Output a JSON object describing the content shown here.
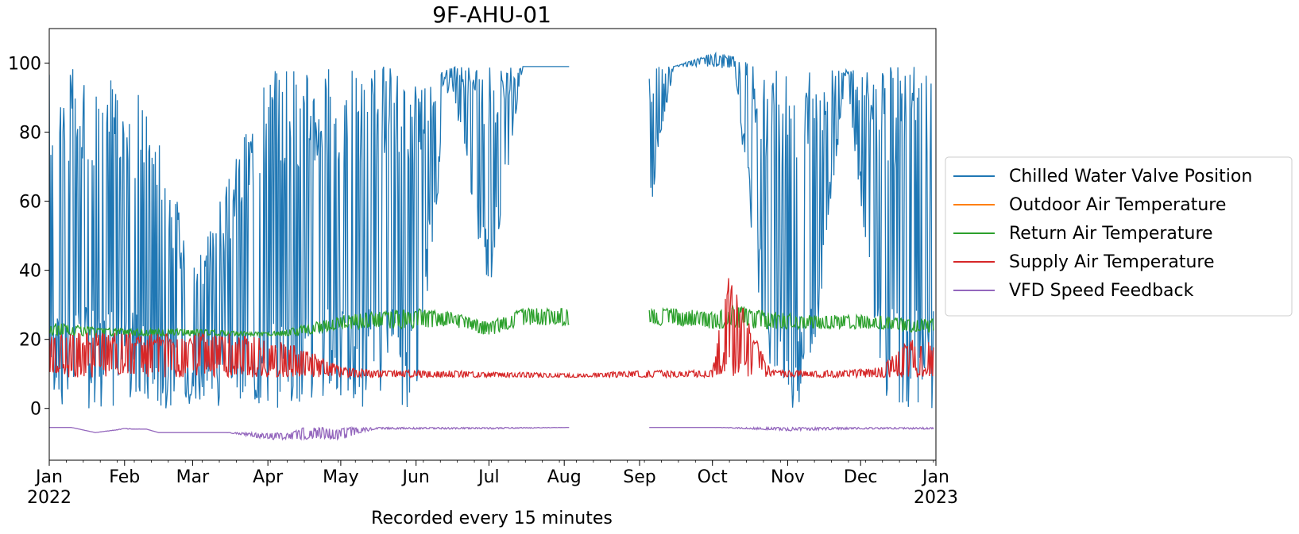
{
  "chart_data": {
    "type": "line",
    "title": "9F-AHU-01",
    "xlabel": "Recorded every 15 minutes",
    "ylabel": "",
    "xlim": [
      "2022-01-01",
      "2023-01-01"
    ],
    "ylim": [
      -15,
      110
    ],
    "yticks": [
      0,
      20,
      40,
      60,
      80,
      100
    ],
    "xticks": [
      {
        "date": "2022-01-01",
        "label": "Jan",
        "sublabel": "2022"
      },
      {
        "date": "2022-02-01",
        "label": "Feb",
        "sublabel": ""
      },
      {
        "date": "2022-03-01",
        "label": "Mar",
        "sublabel": ""
      },
      {
        "date": "2022-04-01",
        "label": "Apr",
        "sublabel": ""
      },
      {
        "date": "2022-05-01",
        "label": "May",
        "sublabel": ""
      },
      {
        "date": "2022-06-01",
        "label": "Jun",
        "sublabel": ""
      },
      {
        "date": "2022-07-01",
        "label": "Jul",
        "sublabel": ""
      },
      {
        "date": "2022-08-01",
        "label": "Aug",
        "sublabel": ""
      },
      {
        "date": "2022-09-01",
        "label": "Sep",
        "sublabel": ""
      },
      {
        "date": "2022-10-01",
        "label": "Oct",
        "sublabel": ""
      },
      {
        "date": "2022-11-01",
        "label": "Nov",
        "sublabel": ""
      },
      {
        "date": "2022-12-01",
        "label": "Dec",
        "sublabel": ""
      },
      {
        "date": "2023-01-01",
        "label": "Jan",
        "sublabel": "2023"
      }
    ],
    "grid": false,
    "legend_position": "outside-right",
    "series": [
      {
        "name": "Chilled Water Valve Position",
        "color": "#1f77b4",
        "x": [
          "2022-01-01",
          "2022-01-15",
          "2022-02-01",
          "2022-02-15",
          "2022-03-01",
          "2022-03-15",
          "2022-04-01",
          "2022-04-15",
          "2022-05-01",
          "2022-05-15",
          "2022-06-01",
          "2022-06-15",
          "2022-07-01",
          "2022-07-15",
          "2022-08-03",
          "2022-09-05",
          "2022-09-15",
          "2022-10-01",
          "2022-10-10",
          "2022-10-25",
          "2022-11-10",
          "2022-11-25",
          "2022-12-10",
          "2022-12-20",
          "2022-12-31"
        ],
        "values": [
          99,
          99,
          99,
          80,
          45,
          65,
          99,
          99,
          99,
          99,
          99,
          99,
          99,
          99,
          99,
          99,
          99,
          103,
          102,
          98,
          98,
          98,
          99,
          99,
          99
        ],
        "min": [
          0,
          0,
          0,
          0,
          0,
          0,
          0,
          0,
          0,
          0,
          0,
          97,
          30,
          99,
          99,
          55,
          99,
          99,
          98,
          0,
          0,
          98,
          0,
          0,
          0
        ]
      },
      {
        "name": "Outdoor Air Temperature",
        "color": "#ff7f0e",
        "x": [],
        "values": []
      },
      {
        "name": "Return Air Temperature",
        "color": "#2ca02c",
        "x": [
          "2022-01-01",
          "2022-01-15",
          "2022-02-01",
          "2022-02-15",
          "2022-03-01",
          "2022-03-15",
          "2022-04-01",
          "2022-04-15",
          "2022-05-01",
          "2022-05-15",
          "2022-06-01",
          "2022-06-15",
          "2022-07-01",
          "2022-07-15",
          "2022-08-03",
          "2022-09-05",
          "2022-09-15",
          "2022-10-01",
          "2022-10-10",
          "2022-10-25",
          "2022-11-10",
          "2022-11-25",
          "2022-12-10",
          "2022-12-20",
          "2022-12-31"
        ],
        "values": [
          25,
          24,
          23,
          23,
          23,
          22.5,
          22,
          24,
          27,
          28,
          29,
          28,
          25,
          29,
          29,
          29,
          29,
          28,
          30,
          28,
          27,
          27,
          27,
          26,
          26
        ],
        "min": [
          21,
          21,
          21,
          21,
          21,
          21,
          21,
          21,
          23,
          23,
          23,
          24,
          21,
          24,
          24,
          24,
          24,
          23,
          23,
          23,
          23,
          23,
          23,
          22,
          22
        ]
      },
      {
        "name": "Supply Air Temperature",
        "color": "#d62728",
        "x": [
          "2022-01-01",
          "2022-01-15",
          "2022-02-01",
          "2022-02-15",
          "2022-03-01",
          "2022-03-15",
          "2022-04-01",
          "2022-04-15",
          "2022-05-01",
          "2022-05-15",
          "2022-06-01",
          "2022-06-15",
          "2022-07-01",
          "2022-07-15",
          "2022-08-03",
          "2022-09-05",
          "2022-09-15",
          "2022-10-01",
          "2022-10-07",
          "2022-10-25",
          "2022-11-10",
          "2022-11-25",
          "2022-12-10",
          "2022-12-20",
          "2022-12-31"
        ],
        "values": [
          22,
          22,
          22,
          22,
          22,
          22,
          20,
          18,
          12,
          11,
          11,
          11,
          10.5,
          10.5,
          10,
          11,
          11,
          11,
          40,
          11,
          11,
          11,
          12,
          20,
          20
        ],
        "min": [
          9,
          9,
          9,
          9,
          9,
          9,
          9,
          9,
          9,
          9,
          9,
          9,
          9,
          9,
          9,
          9,
          9,
          9,
          9,
          9,
          9,
          9,
          9,
          9,
          9
        ]
      },
      {
        "name": "VFD Speed Feedback",
        "color": "#9467bd",
        "x": [
          "2022-01-01",
          "2022-01-10",
          "2022-01-20",
          "2022-02-01",
          "2022-02-10",
          "2022-02-15",
          "2022-03-01",
          "2022-03-15",
          "2022-04-01",
          "2022-04-10",
          "2022-04-15",
          "2022-05-01",
          "2022-05-15",
          "2022-06-01",
          "2022-07-01",
          "2022-08-03",
          "2022-09-05",
          "2022-10-01",
          "2022-11-01",
          "2022-12-01",
          "2022-12-31"
        ],
        "values": [
          -5.5,
          -5.5,
          -7,
          -5.8,
          -6,
          -7,
          -7,
          -7,
          -7,
          -7,
          -5.5,
          -5.5,
          -5.5,
          -5.5,
          -5.5,
          -5.5,
          -5.5,
          -5.5,
          -5.5,
          -5.5,
          -5.5
        ],
        "min": [
          -5.5,
          -5.5,
          -7,
          -6,
          -6,
          -7,
          -7,
          -7,
          -9,
          -9,
          -9,
          -9,
          -6,
          -6,
          -6,
          -5.5,
          -5.5,
          -5.5,
          -6.5,
          -6,
          -6
        ]
      }
    ],
    "gaps": [
      {
        "series": "Chilled Water Valve Position",
        "from": "2022-08-03",
        "to": "2022-09-05"
      },
      {
        "series": "Return Air Temperature",
        "from": "2022-08-03",
        "to": "2022-09-05"
      },
      {
        "series": "VFD Speed Feedback",
        "from": "2022-08-03",
        "to": "2022-09-05"
      }
    ]
  }
}
